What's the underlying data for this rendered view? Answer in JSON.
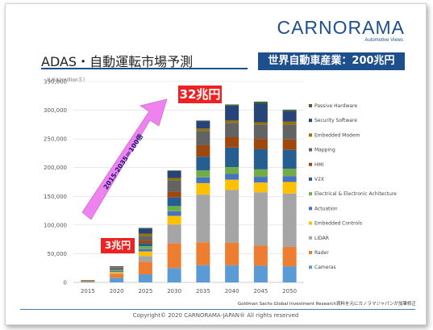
{
  "logo": {
    "main": "CARNORAMA",
    "sub": "Automotive Views"
  },
  "title": "ADAS・自動運転市場予測",
  "badge": "世界自動車産業：200兆円",
  "unit_label": "（US$1million＄）",
  "callouts": {
    "big": "32兆円",
    "small": "3兆円",
    "arrow_text": "2015-2035＝100倍"
  },
  "source_note": "Goldman Sachs Global Investment Research資料を元にカノラマジャパンが加筆修正",
  "copyright": "Copyright© 2020 CARNORAMA-JAPAN® All rights reserved",
  "colors": {
    "accent": "#1d4f8c",
    "callout": "#ee2222",
    "arrow": "#ee82ee"
  },
  "chart_data": {
    "type": "bar",
    "stacked": true,
    "categories": [
      "2015",
      "2020",
      "2025",
      "2030",
      "2035",
      "2040",
      "2045",
      "2050"
    ],
    "ylim": [
      0,
      350000
    ],
    "yticks": [
      0,
      50000,
      100000,
      150000,
      200000,
      250000,
      300000,
      350000
    ],
    "ytick_labels": [
      "0",
      "50,000",
      "100,000",
      "150,000",
      "200,000",
      "250,000",
      "300,000",
      "350,000"
    ],
    "xlabel": "",
    "ylabel": "",
    "legend_position": "right",
    "series": [
      {
        "name": "Cameras",
        "color": "#5b9bd5",
        "values": [
          1000,
          8000,
          14000,
          25000,
          30000,
          30000,
          29000,
          28000
        ]
      },
      {
        "name": "Rader",
        "color": "#ed7d31",
        "values": [
          1000,
          7000,
          22000,
          43000,
          40000,
          39000,
          35000,
          34000
        ]
      },
      {
        "name": "LIDAR",
        "color": "#a5a5a5",
        "values": [
          0,
          1000,
          10000,
          33000,
          83000,
          92000,
          93000,
          93000
        ]
      },
      {
        "name": "Embedded Controls",
        "color": "#ffc000",
        "values": [
          500,
          2000,
          8000,
          15000,
          20000,
          18000,
          17000,
          20000
        ]
      },
      {
        "name": "Actuation",
        "color": "#4472c4",
        "values": [
          300,
          2000,
          4000,
          8000,
          10000,
          10000,
          10000,
          10000
        ]
      },
      {
        "name": "Electrical & Electronic Achitecture",
        "color": "#70ad47",
        "values": [
          300,
          2000,
          5000,
          9000,
          12000,
          12000,
          13000,
          13000
        ]
      },
      {
        "name": "V2X",
        "color": "#255e91",
        "values": [
          0,
          500,
          5000,
          15000,
          24000,
          34000,
          35000,
          33000
        ]
      },
      {
        "name": "HMI",
        "color": "#9e480e",
        "values": [
          200,
          1000,
          5000,
          10000,
          20000,
          18000,
          18000,
          18000
        ]
      },
      {
        "name": "Mapping",
        "color": "#636363",
        "values": [
          200,
          2000,
          8000,
          20000,
          25000,
          25000,
          25000,
          26000
        ]
      },
      {
        "name": "Embedded Modem",
        "color": "#997300",
        "values": [
          100,
          1000,
          4000,
          4000,
          4000,
          4000,
          4000,
          5000
        ]
      },
      {
        "name": "Security Software",
        "color": "#264478",
        "values": [
          100,
          1500,
          9000,
          12000,
          13000,
          26000,
          33000,
          19000
        ]
      },
      {
        "name": "Passive Hardware",
        "color": "#43682b",
        "values": [
          0,
          0,
          1000,
          1000,
          1000,
          2000,
          3000,
          2000
        ]
      }
    ]
  }
}
